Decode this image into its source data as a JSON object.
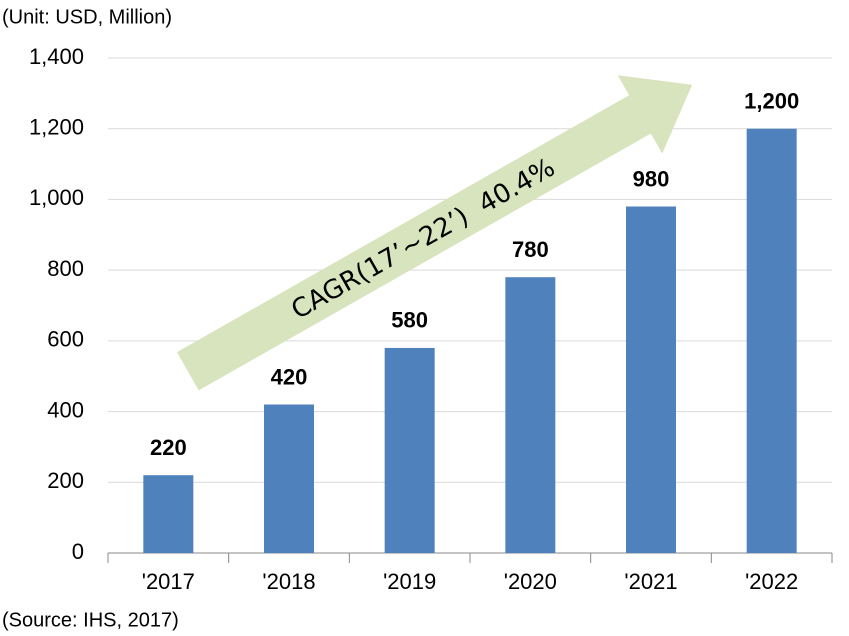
{
  "chart_data": {
    "type": "bar",
    "subtitle": "(Unit: USD, Million)",
    "source": "(Source: IHS, 2017)",
    "annotations": [
      "CAGR(17’~22’)  40.4%"
    ],
    "categories": [
      "'2017",
      "'2018",
      "'2019",
      "'2020",
      "'2021",
      "'2022"
    ],
    "values": [
      220,
      420,
      580,
      780,
      980,
      1200
    ],
    "value_labels": [
      "220",
      "420",
      "580",
      "780",
      "980",
      "1,200"
    ],
    "color": "#4f81bd",
    "ylim": [
      0,
      1400
    ],
    "yticks": [
      0,
      200,
      400,
      600,
      800,
      {
        "value": 1000,
        "label": "1,000"
      },
      {
        "value": 1200,
        "label": "1,200"
      },
      {
        "value": 1400,
        "label": "1,400"
      }
    ],
    "grid": true
  }
}
